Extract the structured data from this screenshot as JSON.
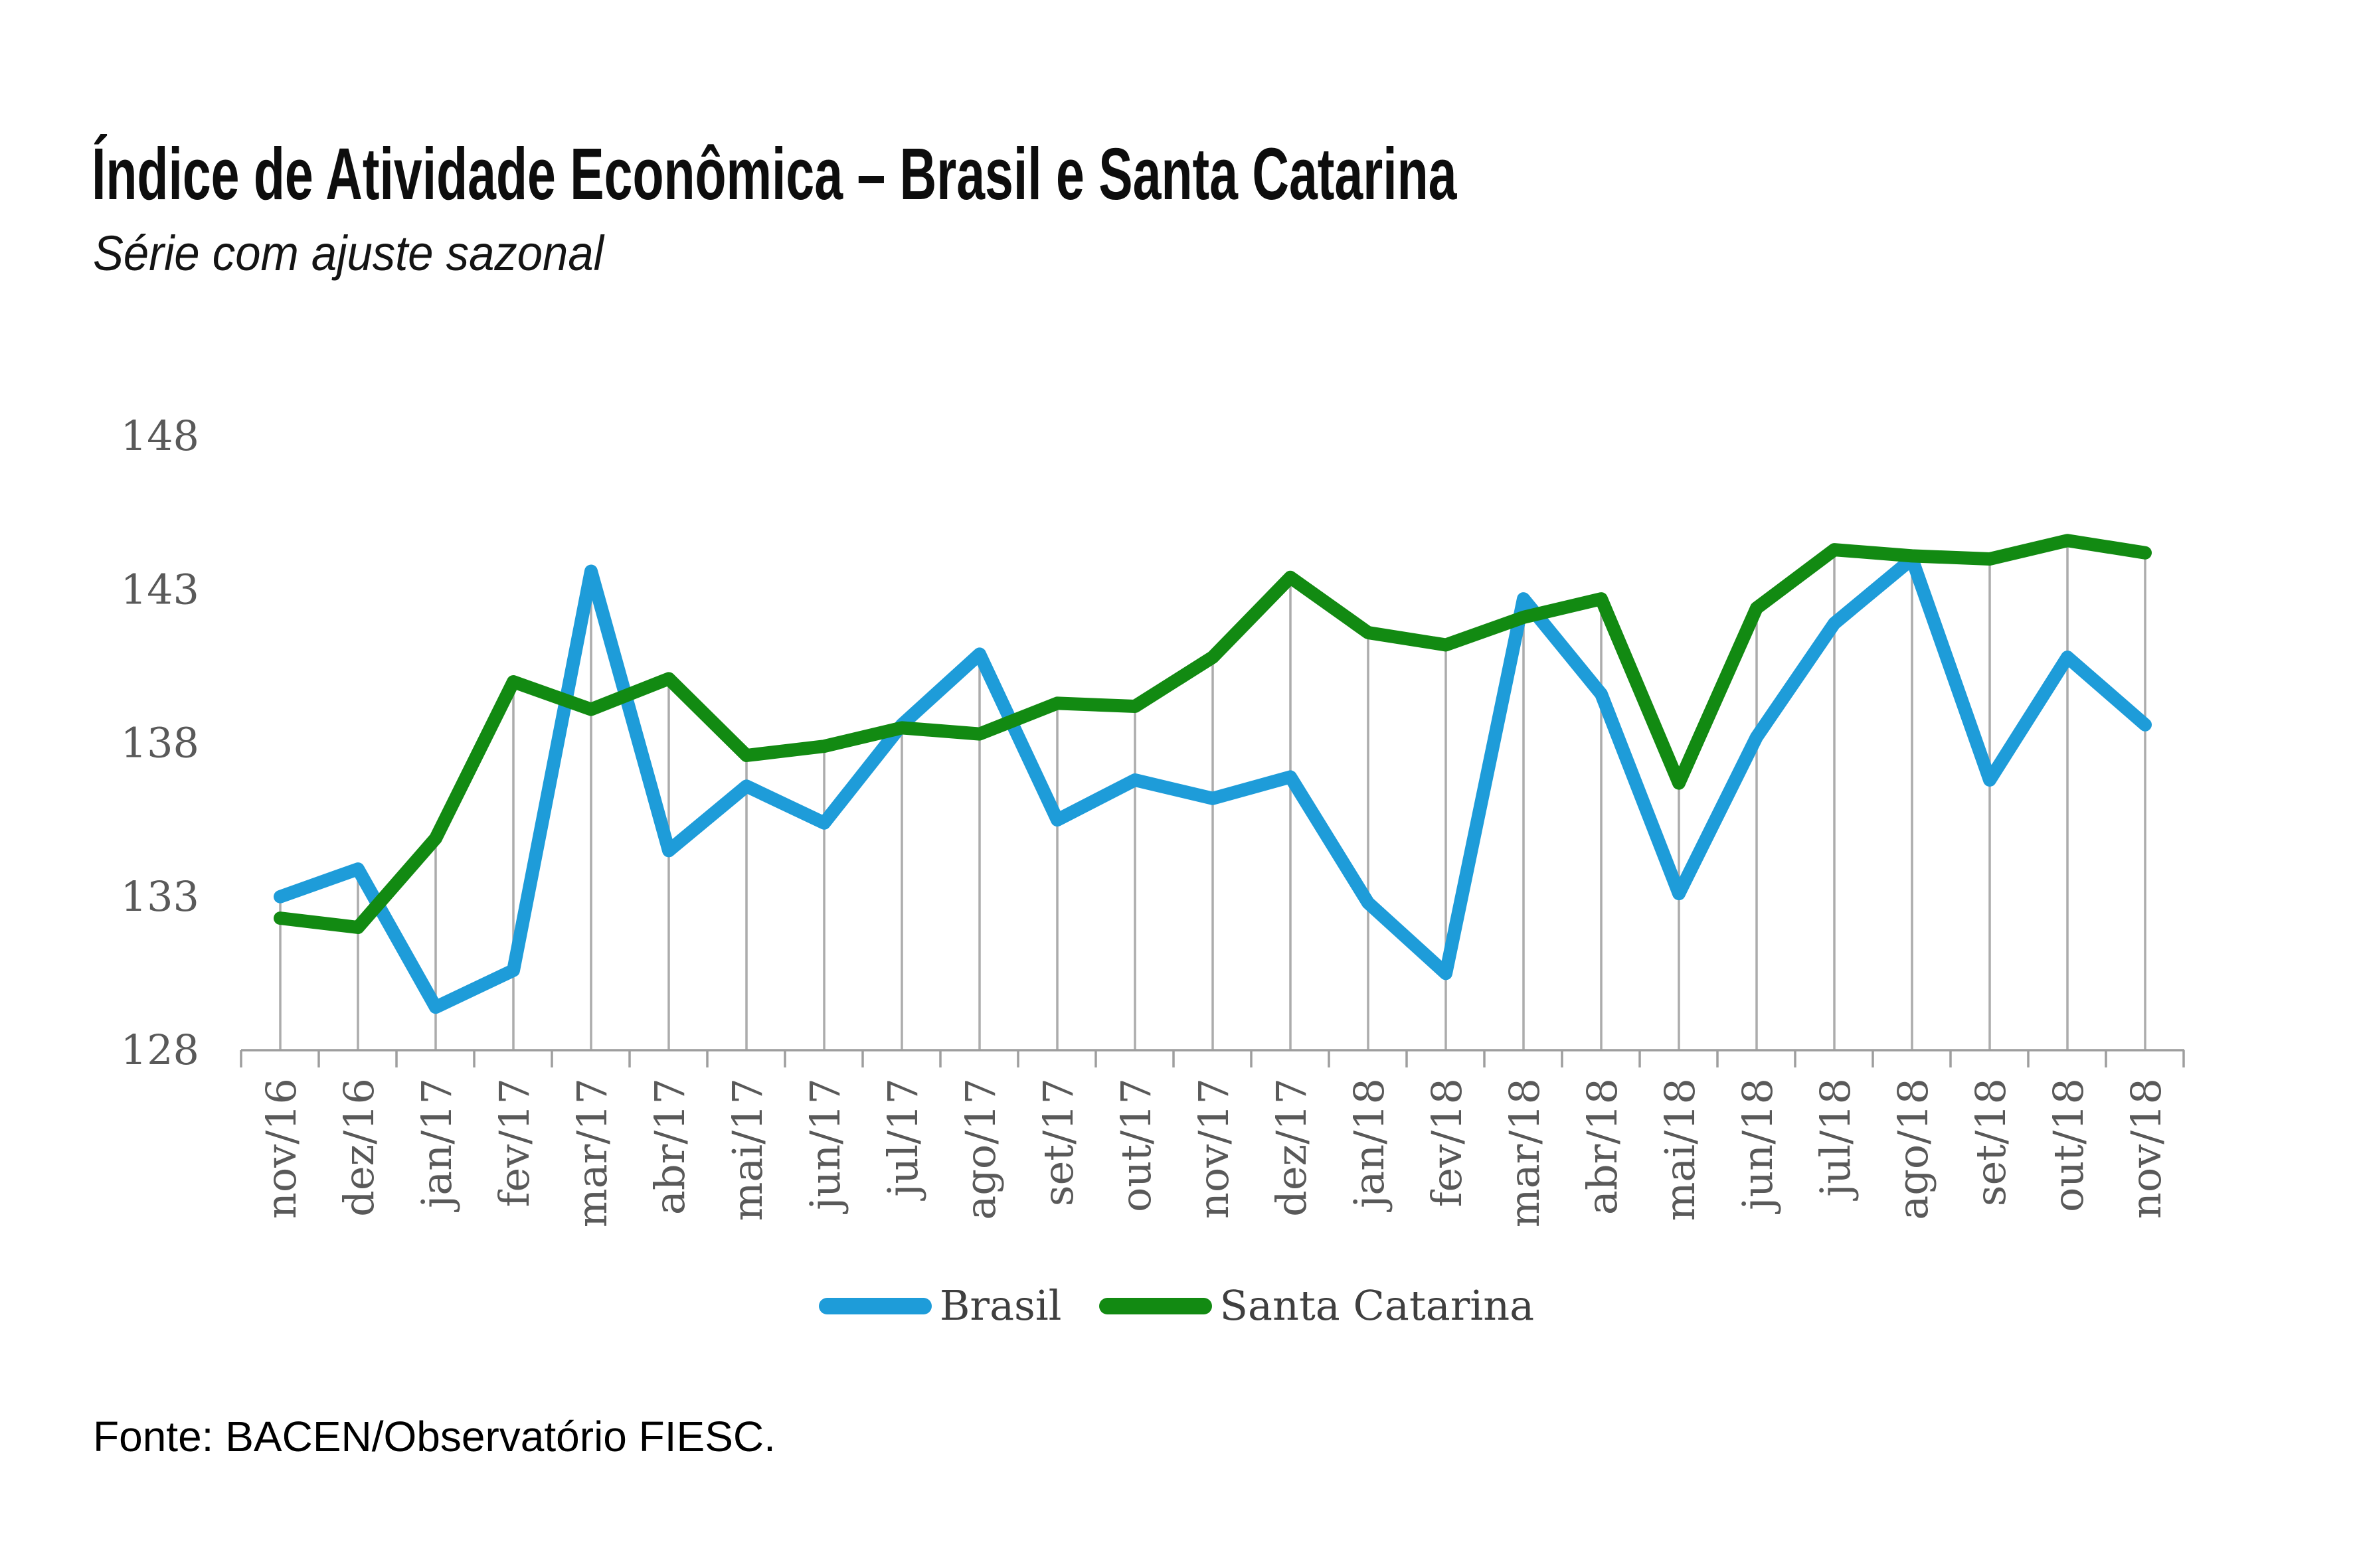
{
  "header": {
    "title": "Índice de Atividade Econômica – Brasil e Santa Catarina",
    "subtitle": "Série com ajuste sazonal"
  },
  "footer": {
    "source": "Fonte: BACEN/Observatório FIESC."
  },
  "colors": {
    "brasil_line": "#1E9CD9",
    "santa_catarina_line": "#128A12",
    "axis": "#9E9E9E",
    "drop_lines": "#ACACAC",
    "tick_labels": "#595959",
    "legend_text": "#3F3F3F"
  },
  "chart_data": {
    "type": "line",
    "title": "Índice de Atividade Econômica – Brasil e Santa Catarina",
    "subtitle": "Série com ajuste sazonal",
    "categories": [
      "nov/16",
      "dez/16",
      "jan/17",
      "fev/17",
      "mar/17",
      "abr/17",
      "mai/17",
      "jun/17",
      "jul/17",
      "ago/17",
      "set/17",
      "out/17",
      "nov/17",
      "dez/17",
      "jan/18",
      "fev/18",
      "mar/18",
      "abr/18",
      "mai/18",
      "jun/18",
      "jul/18",
      "ago/18",
      "set/18",
      "out/18",
      "nov/18"
    ],
    "series": [
      {
        "name": "Brasil",
        "color": "#1E9CD9",
        "values": [
          133.0,
          133.9,
          129.4,
          130.6,
          143.6,
          134.5,
          136.6,
          135.4,
          138.6,
          140.9,
          135.5,
          136.8,
          136.2,
          136.9,
          132.8,
          130.5,
          142.7,
          139.6,
          133.1,
          138.2,
          141.9,
          144.0,
          136.8,
          140.8,
          138.6
        ]
      },
      {
        "name": "Santa Catarina",
        "color": "#128A12",
        "values": [
          132.3,
          132.0,
          134.9,
          140.0,
          139.1,
          140.1,
          137.6,
          137.9,
          138.5,
          138.3,
          139.3,
          139.2,
          140.8,
          143.4,
          141.6,
          141.2,
          142.1,
          142.7,
          136.7,
          142.4,
          144.3,
          144.1,
          144.0,
          144.6,
          144.2
        ]
      }
    ],
    "ylim": [
      128,
      148
    ],
    "yticks": [
      128,
      133,
      138,
      143,
      148
    ],
    "grid": "vertical drop lines from each data point to category axis, no horizontal gridlines",
    "legend_position": "bottom"
  }
}
